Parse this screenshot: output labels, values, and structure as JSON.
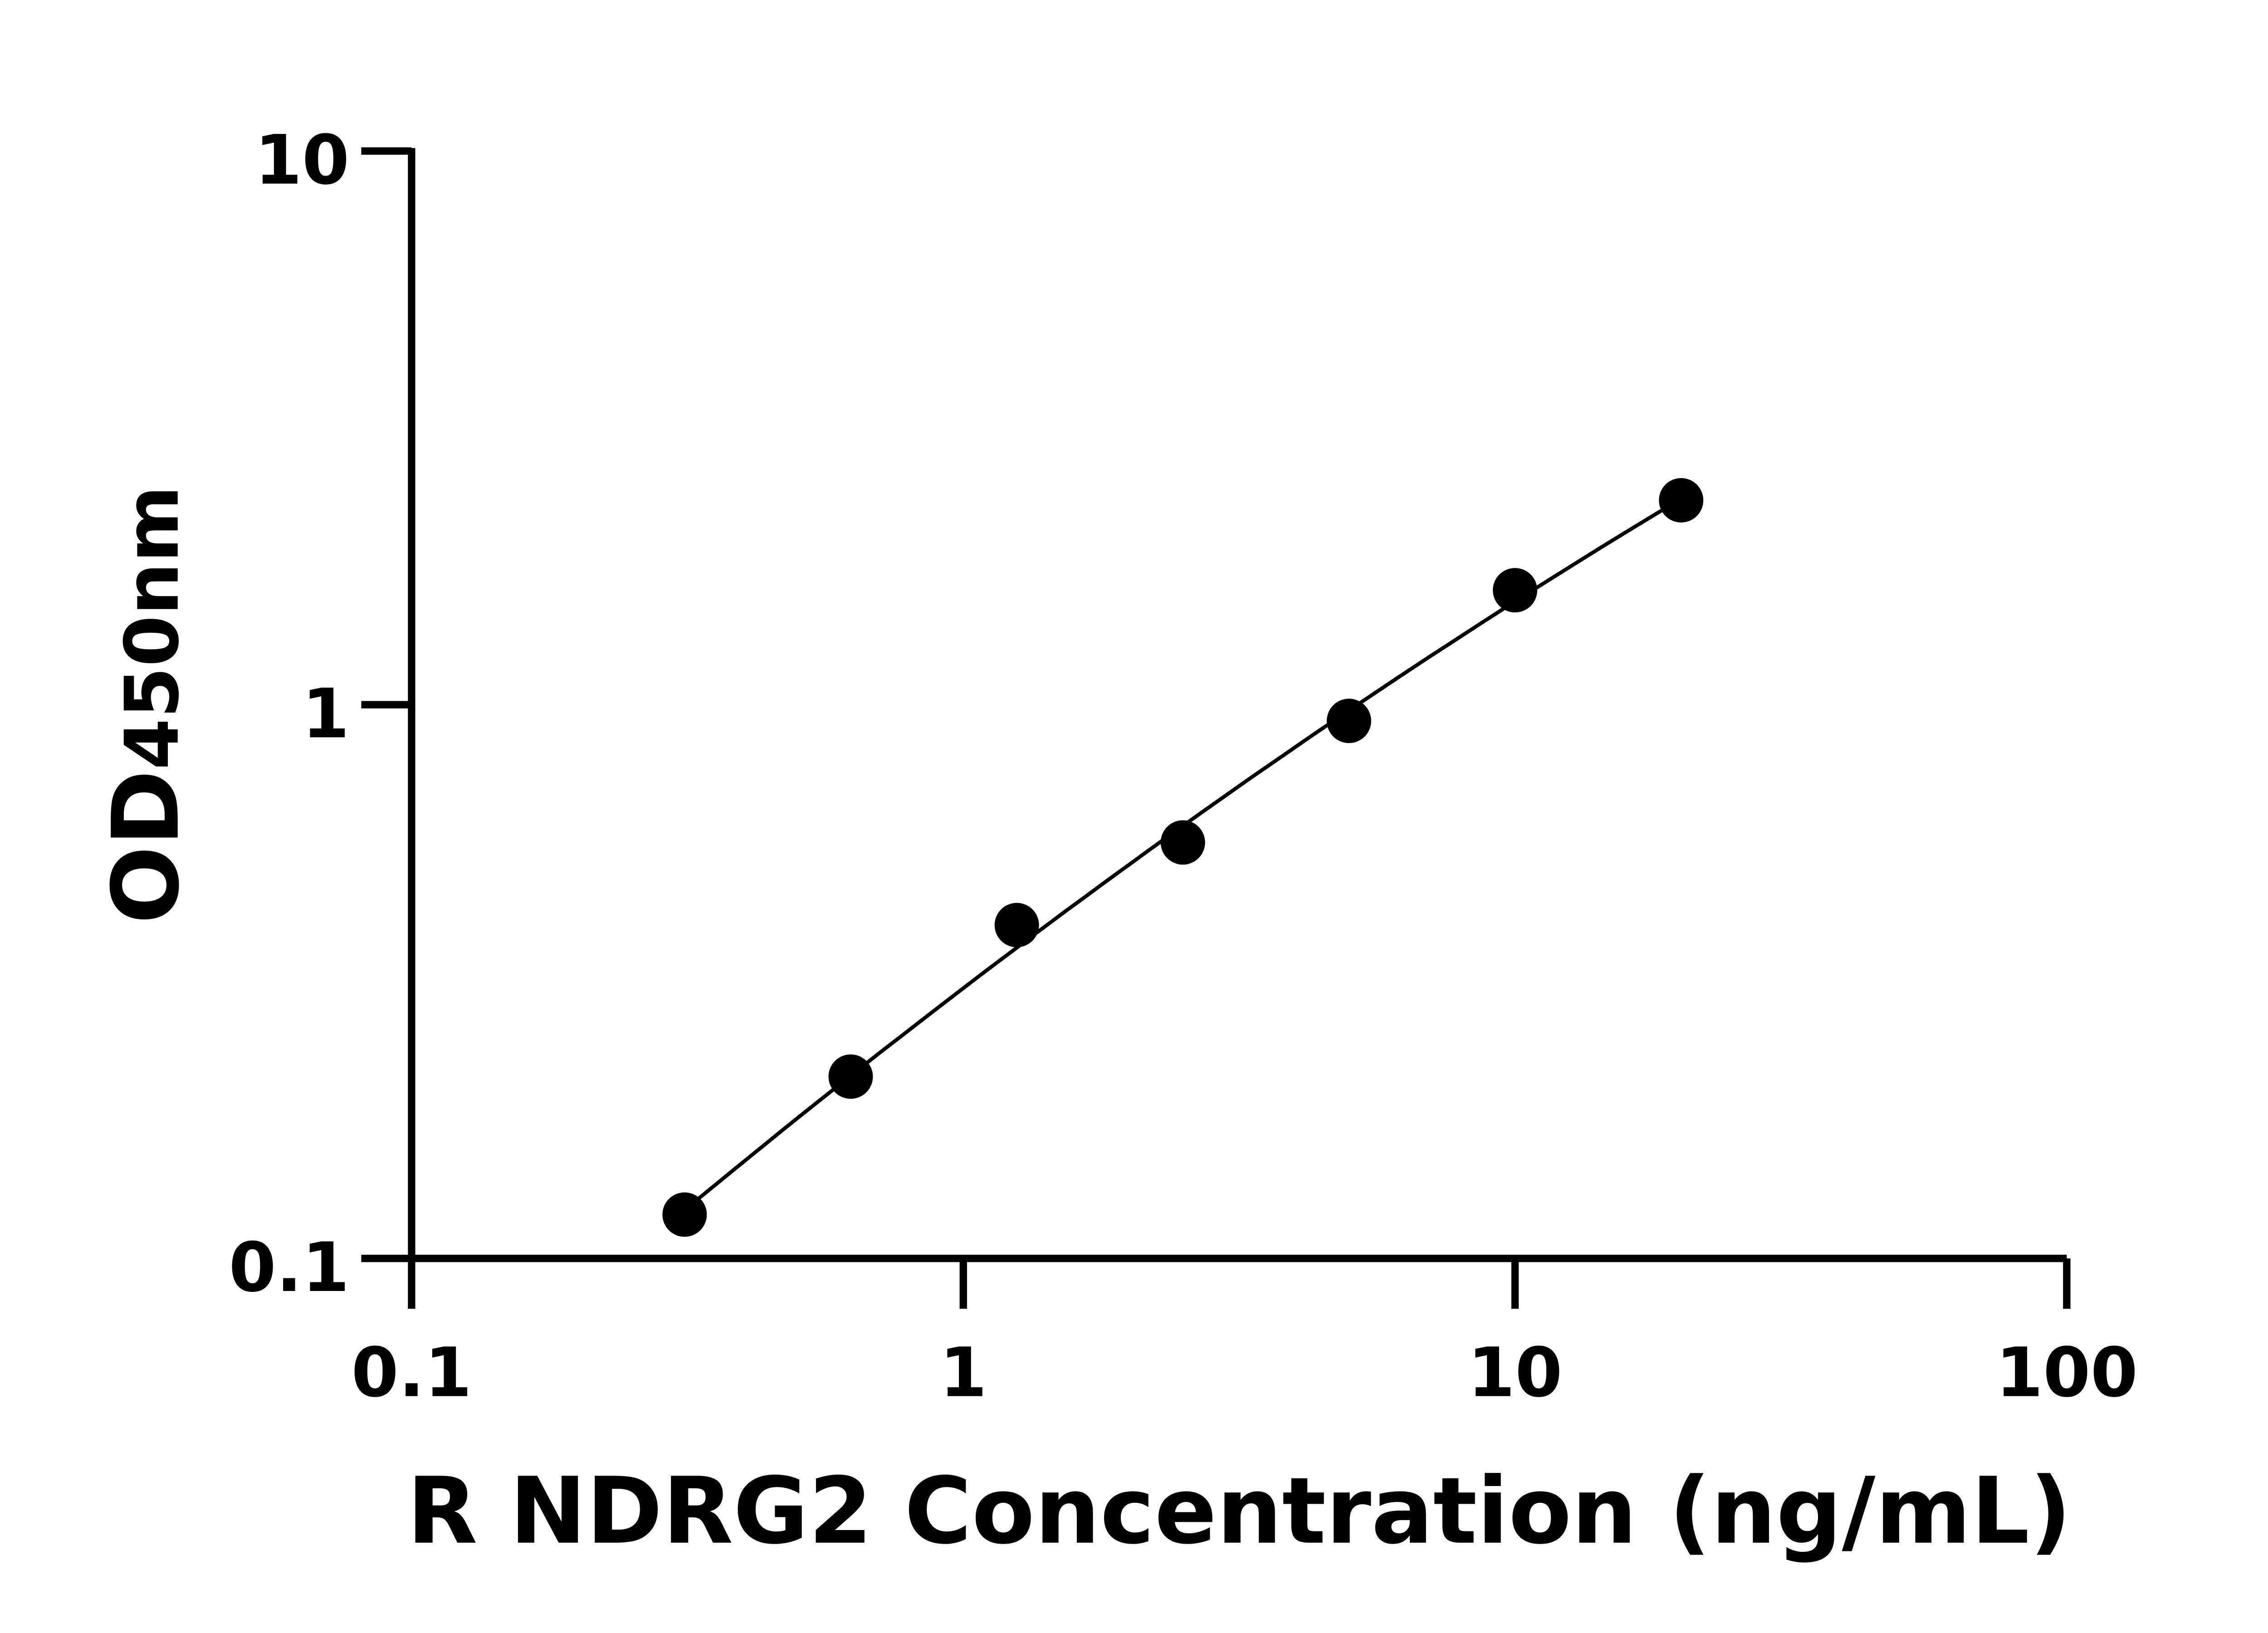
{
  "chart_data": {
    "type": "scatter",
    "title": "",
    "xlabel": "R NDRG2 Concentration (ng/mL)",
    "ylabel_main": "OD",
    "ylabel_sub": "450nm",
    "xscale": "log",
    "yscale": "log",
    "xlim": [
      0.1,
      100
    ],
    "ylim": [
      0.1,
      10
    ],
    "xticks": [
      "0.1",
      "1",
      "10",
      "100"
    ],
    "yticks": [
      "0.1",
      "1",
      "10"
    ],
    "grid": false,
    "legend": "none",
    "marker_color": "#000000",
    "series": [
      {
        "x": [
          0.3125,
          0.625,
          1.25,
          2.5,
          5,
          10,
          20
        ],
        "y": [
          0.12,
          0.213,
          0.4,
          0.564,
          0.935,
          1.61,
          2.34
        ]
      }
    ]
  }
}
